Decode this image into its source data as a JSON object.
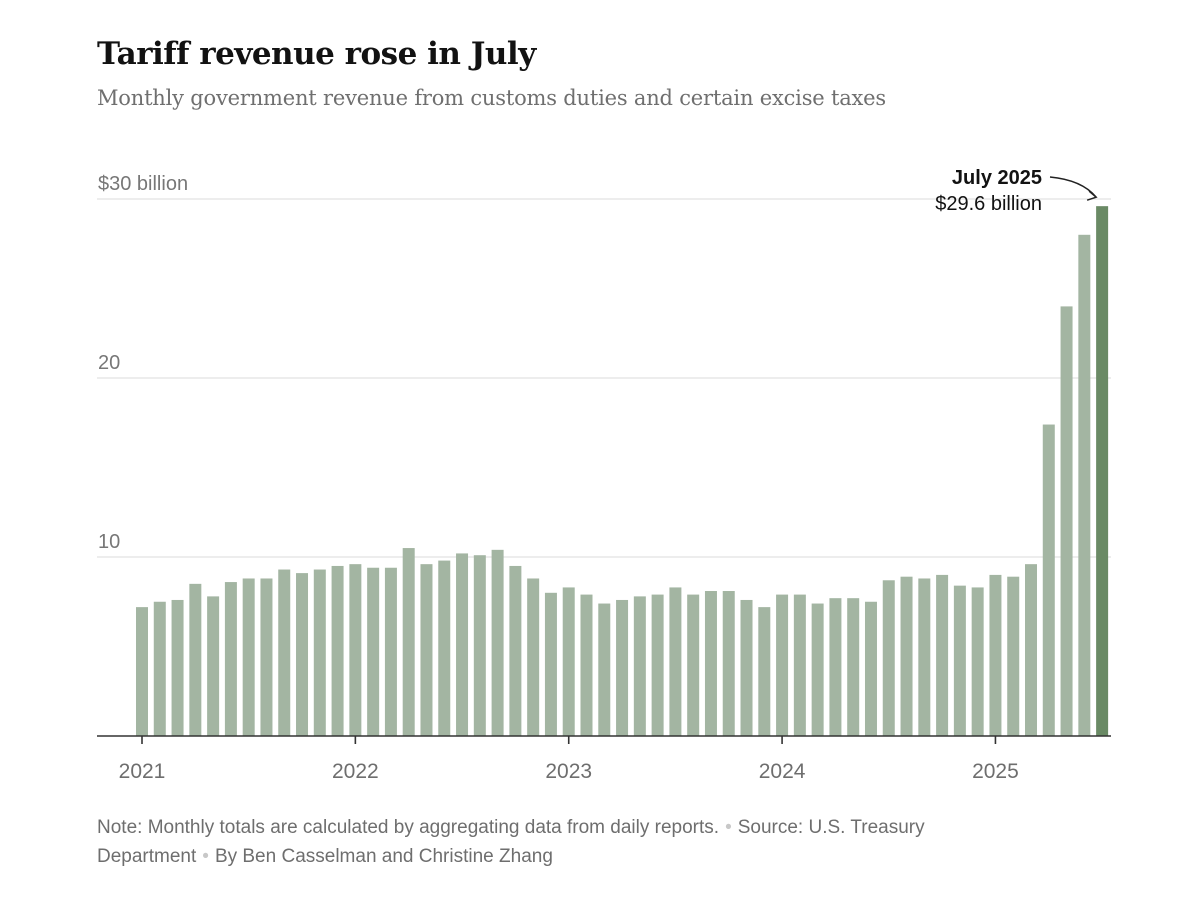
{
  "header": {
    "title": "Tariff revenue rose in July",
    "subtitle": "Monthly government revenue from customs duties and certain excise taxes"
  },
  "footer": {
    "note": "Note: Monthly totals are calculated by aggregating data from daily reports.",
    "source": "Source: U.S. Treasury Department",
    "byline": "By Ben Casselman and Christine Zhang"
  },
  "colors": {
    "bar": "#a3b5a2",
    "highlight_bar": "#6a8a65",
    "gridline": "#e2e2e2",
    "axis": "#333333"
  },
  "chart_data": {
    "type": "bar",
    "title": "Tariff revenue rose in July",
    "subtitle": "Monthly government revenue from customs duties and certain excise taxes",
    "xlabel": "",
    "ylabel": "",
    "unit": "$ billion",
    "ylim": [
      0,
      30
    ],
    "grid": true,
    "y_ticks": [
      {
        "value": 10,
        "label": "10"
      },
      {
        "value": 20,
        "label": "20"
      },
      {
        "value": 30,
        "label": "$30 billion"
      }
    ],
    "x_ticks": [
      {
        "index": 0,
        "label": "2021"
      },
      {
        "index": 12,
        "label": "2022"
      },
      {
        "index": 24,
        "label": "2023"
      },
      {
        "index": 36,
        "label": "2024"
      },
      {
        "index": 48,
        "label": "2025"
      }
    ],
    "categories": [
      "2021-01",
      "2021-02",
      "2021-03",
      "2021-04",
      "2021-05",
      "2021-06",
      "2021-07",
      "2021-08",
      "2021-09",
      "2021-10",
      "2021-11",
      "2021-12",
      "2022-01",
      "2022-02",
      "2022-03",
      "2022-04",
      "2022-05",
      "2022-06",
      "2022-07",
      "2022-08",
      "2022-09",
      "2022-10",
      "2022-11",
      "2022-12",
      "2023-01",
      "2023-02",
      "2023-03",
      "2023-04",
      "2023-05",
      "2023-06",
      "2023-07",
      "2023-08",
      "2023-09",
      "2023-10",
      "2023-11",
      "2023-12",
      "2024-01",
      "2024-02",
      "2024-03",
      "2024-04",
      "2024-05",
      "2024-06",
      "2024-07",
      "2024-08",
      "2024-09",
      "2024-10",
      "2024-11",
      "2024-12",
      "2025-01",
      "2025-02",
      "2025-03",
      "2025-04",
      "2025-05",
      "2025-06",
      "2025-07"
    ],
    "values": [
      7.2,
      7.5,
      7.6,
      8.5,
      7.8,
      8.6,
      8.8,
      8.8,
      9.3,
      9.1,
      9.3,
      9.5,
      9.6,
      9.4,
      9.4,
      10.5,
      9.6,
      9.8,
      10.2,
      10.1,
      10.4,
      9.5,
      8.8,
      8.0,
      8.3,
      7.9,
      7.4,
      7.6,
      7.8,
      7.9,
      8.3,
      7.9,
      8.1,
      8.1,
      7.6,
      7.2,
      7.9,
      7.9,
      7.4,
      7.7,
      7.7,
      7.5,
      8.7,
      8.9,
      8.8,
      9.0,
      8.4,
      8.3,
      9.0,
      8.9,
      9.6,
      17.4,
      24.0,
      28.0,
      29.6
    ],
    "highlight_index": 54,
    "annotation": {
      "label": "July 2025",
      "value_text": "$29.6 billion"
    }
  }
}
